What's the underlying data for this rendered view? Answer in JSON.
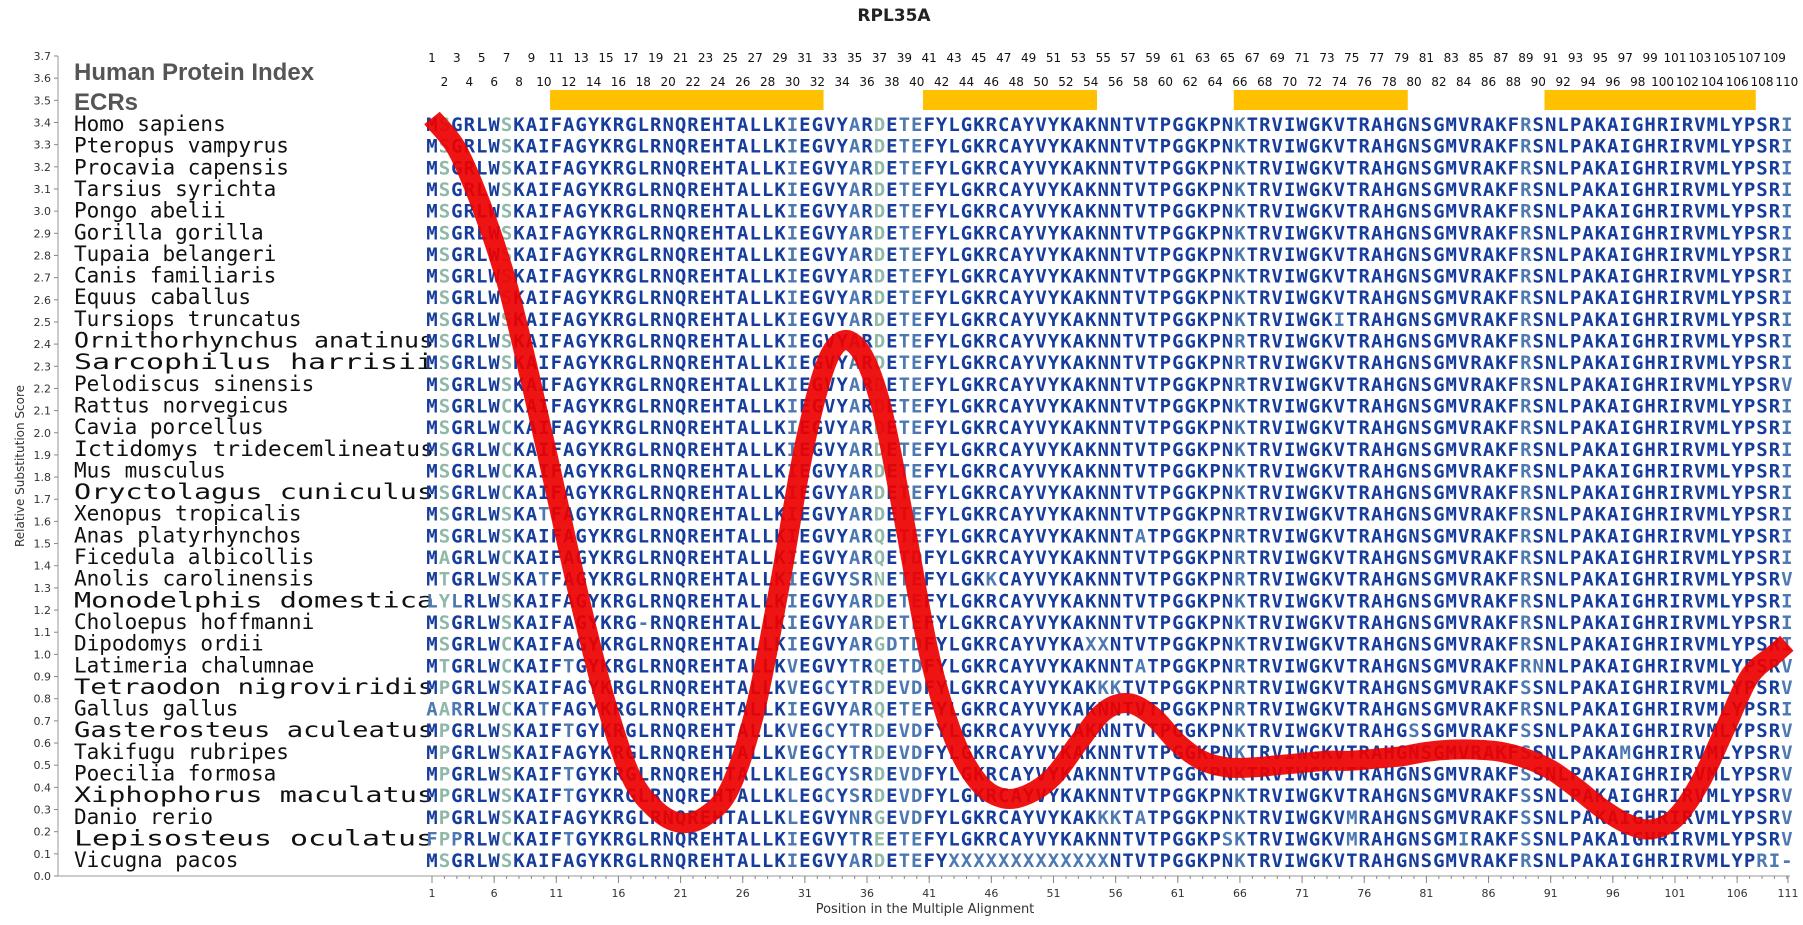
{
  "chart_data": {
    "type": "line",
    "title": "RPL35A",
    "xlabel": "Position in the Multiple Alignment",
    "ylabel": "Relative Substitution Score",
    "ylim": [
      0.0,
      3.7
    ],
    "xlim": [
      1,
      110
    ],
    "y_ticks": [
      "0.0",
      "0.1",
      "0.2",
      "0.3",
      "0.4",
      "0.5",
      "0.6",
      "0.7",
      "0.8",
      "0.9",
      "1.0",
      "1.1",
      "1.2",
      "1.3",
      "1.4",
      "1.5",
      "1.6",
      "1.7",
      "1.8",
      "1.9",
      "2.0",
      "2.1",
      "2.2",
      "2.3",
      "2.4",
      "2.5",
      "2.6",
      "2.7",
      "2.8",
      "2.9",
      "3.0",
      "3.1",
      "3.2",
      "3.3",
      "3.4",
      "3.5",
      "3.6",
      "3.7"
    ],
    "x_ticks": [
      1,
      6,
      11,
      16,
      21,
      26,
      31,
      36,
      41,
      46,
      51,
      56,
      61,
      66,
      71,
      76,
      81,
      86,
      91,
      96,
      101,
      106,
      111
    ],
    "grid": false,
    "index_label": "Human Protein Index",
    "ecr_label": "ECRs",
    "index_top_odd": [
      1,
      3,
      5,
      7,
      9,
      11,
      13,
      15,
      17,
      19,
      21,
      23,
      25,
      27,
      29,
      31,
      33,
      35,
      37,
      39,
      41,
      43,
      45,
      47,
      49,
      51,
      53,
      55,
      57,
      59,
      61,
      63,
      65,
      67,
      69,
      71,
      73,
      75,
      77,
      79,
      81,
      83,
      85,
      87,
      89,
      91,
      93,
      95,
      97,
      99,
      101,
      103,
      105,
      107,
      109
    ],
    "index_bottom_even": [
      2,
      4,
      6,
      8,
      10,
      12,
      14,
      16,
      18,
      20,
      22,
      24,
      26,
      28,
      30,
      32,
      34,
      36,
      38,
      40,
      42,
      44,
      46,
      48,
      50,
      52,
      54,
      56,
      58,
      60,
      62,
      64,
      66,
      68,
      70,
      72,
      74,
      76,
      78,
      80,
      82,
      84,
      86,
      88,
      90,
      92,
      94,
      96,
      98,
      100,
      102,
      104,
      106,
      108,
      110
    ],
    "ecr_regions": [
      [
        11,
        32
      ],
      [
        41,
        54
      ],
      [
        66,
        79
      ],
      [
        91,
        107
      ]
    ],
    "series": [
      {
        "x": [
          1,
          3,
          5,
          7,
          9,
          11,
          13,
          15,
          17,
          19,
          21,
          23,
          25,
          27,
          29,
          31,
          33,
          35,
          37,
          39,
          41,
          43,
          45,
          47,
          49,
          51,
          53,
          55,
          57,
          59,
          61,
          63,
          65,
          67,
          69,
          71,
          73,
          75,
          77,
          79,
          81,
          83,
          85,
          87,
          89,
          91,
          93,
          95,
          97,
          99,
          101,
          103,
          105,
          107,
          109,
          110
        ],
        "y": [
          3.42,
          3.28,
          3.02,
          2.68,
          2.22,
          1.72,
          1.22,
          0.78,
          0.45,
          0.3,
          0.24,
          0.27,
          0.4,
          0.75,
          1.32,
          1.95,
          2.35,
          2.4,
          2.15,
          1.6,
          1.0,
          0.62,
          0.42,
          0.35,
          0.37,
          0.45,
          0.6,
          0.74,
          0.78,
          0.72,
          0.6,
          0.52,
          0.49,
          0.49,
          0.5,
          0.51,
          0.52,
          0.52,
          0.53,
          0.54,
          0.56,
          0.57,
          0.57,
          0.56,
          0.53,
          0.48,
          0.4,
          0.31,
          0.24,
          0.21,
          0.26,
          0.42,
          0.66,
          0.9,
          1.0,
          1.05
        ]
      }
    ],
    "species": [
      {
        "name": "Homo sapiens",
        "seq": "MSGRLWSKAIFAGYKRGLRNQREHTALLKIEGVYARDETEFYLGKRCAYVYKAKNNTVTPGGKPNKTRVIWGKVTRAHGNSGMVRAKFRSNLPAKAIGHRIRVMLYPSRI"
      },
      {
        "name": "Pteropus vampyrus",
        "seq": "MSGRLWSKAIFAGYKRGLRNQREHTALLKIEGVYARDETEFYLGKRCAYVYKAKNNTVTPGGKPNKTRVIWGKVTRAHGNSGMVRAKFRSNLPAKAIGHRIRVMLYPSRI"
      },
      {
        "name": "Procavia capensis",
        "seq": "MSGRLWSKAIFAGYKRGLRNQREHTALLKIEGVYARDETEFYLGKRCAYVYKAKNNTVTPGGKPNKTRVIWGKVTRAHGNSGMVRAKFRSNLPAKAIGHRIRVMLYPSRI"
      },
      {
        "name": "Tarsius syrichta",
        "seq": "MSGRLWSKAIFAGYKRGLRNQREHTALLKIEGVYARDETEFYLGKRCAYVYKAKNNTVTPGGKPNKTRVIWGKVTRAHGNSGMVRAKFRSNLPAKAIGHRIRVMLYPSRI"
      },
      {
        "name": "Pongo abelii",
        "seq": "MSGRLWSKAIFAGYKRGLRNQREHTALLKIEGVYARDETEFYLGKRCAYVYKAKNNTVTPGGKPNKTRVIWGKVTRAHGNSGMVRAKFRSNLPAKAIGHRIRVMLYPSRI"
      },
      {
        "name": "Gorilla gorilla",
        "seq": "MSGRLWSKAIFAGYKRGLRNQREHTALLKIEGVYARDETEFYLGKRCAYVYKAKNNTVTPGGKPNKTRVIWGKVTRAHGNSGMVRAKFRSNLPAKAIGHRIRVMLYPSRI"
      },
      {
        "name": "Tupaia belangeri",
        "seq": "MSGRLWSKAIFAGYKRGLRNQREHTALLKIEGVYARDETEFYLGKRCAYVYKAKNNTVTPGGKPNKTRVIWGKVTRAHGNSGMVRAKFRSNLPAKAIGHRIRVMLYPSRI"
      },
      {
        "name": "Canis familiaris",
        "seq": "MSGRLWSKAIFAGYKRGLRNQREHTALLKIEGVYARDETEFYLGKRCAYVYKAKNNTVTPGGKPNKTRVIWGKVTRAHGNSGMVRAKFRSNLPAKAIGHRIRVMLYPSRI"
      },
      {
        "name": "Equus caballus",
        "seq": "MSGRLWSKAIFAGYKRGLRNQREHTALLKIEGVYARDETEFYLGKRCAYVYKAKNNTVTPGGKPNKTRVIWGKVTRAHGNSGMVRAKFRSNLPAKAIGHRIRVMLYPSRI"
      },
      {
        "name": "Tursiops truncatus",
        "seq": "MSGRLWSKAIFAGYKRGLRNQREHTALLKIEGVYARDETEFYLGKRCAYVYKAKNNTVTPGGKPNKTRVIWGKITRAHGNSGMVRAKFRSNLPAKAIGHRIRVMLYPSRI"
      },
      {
        "name": "Ornithorhynchus anatinus",
        "seq": "MSGRLWSKAIFAGYKRGLRNQREHTALLKIEGVYARDETEFYLGKRCAYVYKAKNNTVTPGGKPNRTRVIWGKVTRAHGNSGMVRAKFRSNLPAKAIGHRIRVMLYPSRI"
      },
      {
        "name": "Sarcophilus harrisii",
        "seq": "MSGRLWSKAIFAGYKRGLRNQREHTALLKIEGVYARDETEFYLGKRCAYVYKAKNNTVTPGGKPNRTRVIWGKVTRAHGNSGMVRAKFRSNLPAKAIGHRIRVMLYPSRI"
      },
      {
        "name": "Pelodiscus sinensis",
        "seq": "MSGRLWSKAIFAGYKRGLRNQREHTALLKIEGVYARDETEFYLGKRCAYVYKAKNNTVTPGGKPNRTRVIWGKVTRAHGNSGMVRAKFRSNLPAKAIGHRIRVMLYPSRV"
      },
      {
        "name": "Rattus norvegicus",
        "seq": "MSGRLWCKAIFAGYKRGLRNQREHTALLKIEGVYARDETEFYLGKRCAYVYKAKNNTVTPGGKPNKTRVIWGKVTRAHGNSGMVRAKFRSNLPAKAIGHRIRVMLYPSRI"
      },
      {
        "name": "Cavia porcellus",
        "seq": "MSGRLWCKAIFAGYKRGLRNQREHTALLKIEGVYARDETEFYLGKRCAYVYKAKNNTVTPGGKPNKTRVIWGKVTRAHGNSGMVRAKFRSNLPAKAIGHRIRVMLYPSRI"
      },
      {
        "name": "Ictidomys tridecemlineatus",
        "seq": "MSGRLWCKAIFAGYKRGLRNQREHTALLKIEGVYARDETEFYLGKRCAYVYKAKNNTVTPGGKPNKTRVIWGKVTRAHGNSGMVRAKFRSNLPAKAIGHRIRVMLYPSRI"
      },
      {
        "name": "Mus musculus",
        "seq": "MSGRLWCKAIFAGYKRGLRNQREHTALLKIEGVYARDETEFYLGKRCAYVYKAKNNTVTPGGKPNKTRVIWGKVTRAHGNSGMVRAKFRSNLPAKAIGHRIRVMLYPSRI"
      },
      {
        "name": "Oryctolagus cuniculus",
        "seq": "MSGRLWCKAIFAGYKRGLRNQREHTALLKIEGVYARDETEFYLGKRCAYVYKAKNNTVTPGGKPNKTRVIWGKVTRAHGNSGMVRAKFRSNLPAKAIGHRIRVMLYPSRI"
      },
      {
        "name": "Xenopus tropicalis",
        "seq": "MSGRLWSKATFAGYKRGLRNQREHTALLKIEGVYARDETEFYLGKRCAYVYKAKNNTVTPGGKPNRTRVIWGKVTRAHGNSGMVRAKFRSNLPAKAIGHRIRVMLYPSRI"
      },
      {
        "name": "Anas platyrhynchos",
        "seq": "MSGRLWSKAIFAGYKRGLRNQREHTALLKIEGVYARQETEFYLGKRCAYVYKAKNNTATPGGKPNRTRVIWGKVTRAHGNSGMVRAKFRSNLPAKAIGHRIRVMLYPSRI"
      },
      {
        "name": "Ficedula albicollis",
        "seq": "MAGRLWCKAIFAGYKRGLRNQREHTALLKIEGVYARQETDFYLGKRCAYVYKAKNNTVTPGGKPNRTRVIWGKVTRAHGNSGMVRAKFRSNLPAKAIGHRIRVMLYPSRI"
      },
      {
        "name": "Anolis carolinensis",
        "seq": "MTGRLWSKATFAGYKRGLRNQREHTALLKIEGVYSRNETEFYLGKKCAYVYKAKNNTVTPGGKPNRTRVIWGKVTRAHGNSGMVRAKFRSNLPAKAIGHRIRVMLYPSRV"
      },
      {
        "name": "Monodelphis domestica",
        "seq": "LYLRLWSKAIFAGYKRGLRNQREHTALLKIEGVYARDETEFYLGKRCAYVYKAKNNTVTPGGKPNKTRVIWGKVTRAHGNSGMVRAKFRSNLPAKAIGHRIRVMLYPSRI"
      },
      {
        "name": "Choloepus hoffmanni",
        "seq": "MSGRLWSKAIFAGYKRG-RNQREHTALLKIEGVYARDETEFYLGKRCAYVYKAKNNTVTPGGKPNKTRVIWGKVTRAHGNSGMVRAKFRSNLPAKAIGHRIRVMLYPSRI"
      },
      {
        "name": "Dipodomys ordii",
        "seq": "MSGRLWCKAIFAGYKRGLRNQREHTALLKIEGVYARGDTDFYLGKRCAYVYKAXXNTVTPGGKPNKTRVIWGKVTRAHGNSGMVRAKFRSNLPAKAIGHRIRVMLYPSRI"
      },
      {
        "name": "Latimeria chalumnae",
        "seq": "MTGRLWCKAIFTGYKRGLRNQREHTALLKVEGVYTRQETDFYLGKRCAYVYKAKNNTATPGGKPNRTRVIWGKVTRAHGNSGMVRAKFRNNLPAKAIGHRIRVMLYPSRV"
      },
      {
        "name": "Tetraodon nigroviridis",
        "seq": "MPGRLWSKAIFAGYKRGLRNQREHTALLKVEGCYTRDEVDFYLGKRCAYVYKAKKKTVTPGGKPNRTRVIWGKVTRAHGNSGMVRAKFSSNLPAKAIGHRIRVMLYPSRV"
      },
      {
        "name": "Gallus gallus",
        "seq": "AARRLWCKATFAGYKRGLRNQREHTALLKIEGVYARQETEFYLGKRCAYVYKAKNNTVTPGGKPNRTRVIWGKVTRAHGNSGMVRAKFRSNLPAKAIGHRIRVMLYPSRI"
      },
      {
        "name": "Gasterosteus aculeatus",
        "seq": "MPGRLWSKAIFTGYKRGLRNQREHTALLKVEGCYTRDEVDFYLGKRCAYVYKAKNNTVTPGGKPNKTRVIWGKVTRAHGSSGMVRAKFSSNLPAKAIGHRIRVMLYPSRV"
      },
      {
        "name": "Takifugu rubripes",
        "seq": "MPGRLWSKAIFAGYKRGLRNQREHTALLKVEGCYTRDEVDFYLGKRCAYVYKAKNNTVTPGGKPNKTRVIWGKVTRAHGNSGMVRAKFSSNLPAKAMGHRIRVMLYPSRV"
      },
      {
        "name": "Poecilia formosa",
        "seq": "MPGRLWSKAIFTGYKRGLRNQREHTALLKLEGCYSRDEVDFYLGKRCAYVYKAKNNTVTPGGKPNKTRVIWGKVTRAHGNSGMVRAKFSSNLPAKAIGHRIRVMLYPSRV"
      },
      {
        "name": "Xiphophorus maculatus",
        "seq": "MPGRLWSKAIFTGYKRGLRNQREHTALLKLEGCYSRDEVDFYLGKRCAYVYKAKNNTVTPGGKPNKTRVIWGKVTRAHGNSGMVRAKFSSNLPAKAIGHRIRVMLYPSRV"
      },
      {
        "name": "Danio rerio",
        "seq": "MPGRLWSKAIFAGYKRGLRNQREHTALLKLEGVYNRGEVDFYLGKRCAYVYKAKKKTATPGGKPNKTRVIWGKVMRAHGNSGMVRAKFSSNLPAKAIGHRIRVMLYPSRV"
      },
      {
        "name": "Lepisosteus oculatus",
        "seq": "FPPRLWCKAIFTGYKRGLRNQREHTALLKIEGVYTREETEFYLGKRCAYVYKAKNNTVTPGGKPSKTRVIWGKVMRAHGNSGMIRAKFSSNLPAKAIGHRIRVMLYPSRV"
      },
      {
        "name": "Vicugna pacos",
        "seq": "MSGRLWSKAIFAGYKRGLRNQREHTALLKIEGVYARDETEFYXXXXXXXXXXXXXNTVTPGGKPNKTRVIWGKVTRAHGNSGMVRAKFRSNLPAKAIGHRIRVMLYPRI-"
      }
    ],
    "colors": {
      "residue_conserved": "#163d9c",
      "residue_variable": "#4d79b3",
      "residue_pale": "#8fb8a8",
      "ecr_bar": "#ffc000",
      "score_line": "#ee0000",
      "axis": "#888888"
    }
  }
}
